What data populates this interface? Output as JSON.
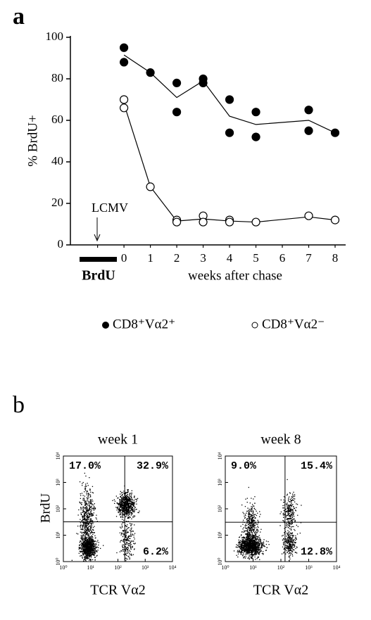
{
  "chart_data": [
    {
      "type": "scatter",
      "panel": "a",
      "ylabel": "% BrdU+",
      "xlabel": "weeks after chase",
      "annotations": [
        "LCMV",
        "BrdU"
      ],
      "xlim": [
        -2.03,
        8.4
      ],
      "xticks": [
        {
          "value": -1,
          "label": "-"
        },
        0,
        1,
        2,
        3,
        4,
        5,
        6,
        7,
        8
      ],
      "ylim": [
        0,
        100
      ],
      "yticks": [
        0,
        20,
        40,
        60,
        80,
        100
      ],
      "series": [
        {
          "name": "CD8⁺Vα2⁺",
          "color": "#000000",
          "marker": "filled",
          "x": [
            0,
            0,
            1,
            2,
            2,
            3,
            3,
            4,
            4,
            5,
            5,
            7,
            7,
            8
          ],
          "values": [
            95,
            88,
            83,
            78,
            64,
            80,
            78,
            70,
            54,
            64,
            52,
            65,
            55,
            54
          ],
          "line_x": [
            0,
            1,
            2,
            3,
            4,
            5,
            7,
            8
          ],
          "line_values": [
            91.5,
            83,
            71,
            79,
            62,
            58,
            60,
            54
          ]
        },
        {
          "name": "CD8⁺Vα2⁻",
          "color": "#000000",
          "marker": "open",
          "x": [
            0,
            0,
            1,
            2,
            2,
            3,
            3,
            4,
            4,
            5,
            7,
            8
          ],
          "values": [
            70,
            66,
            28,
            12,
            11,
            14,
            11,
            12,
            11,
            11,
            14,
            12
          ],
          "line_x": [
            0,
            1,
            2,
            3,
            4,
            5,
            7,
            8
          ],
          "line_values": [
            68,
            28,
            11.5,
            12.5,
            11.5,
            11,
            13.5,
            12
          ]
        }
      ]
    },
    {
      "type": "flow",
      "panel": "b",
      "title": "week 1",
      "xlabel": "TCR Vα2",
      "ylabel": "BrdU",
      "xscale": "log",
      "yscale": "log",
      "xlim": [
        1,
        10000
      ],
      "ylim": [
        1,
        10000
      ],
      "xticks": [
        {
          "value": 1,
          "label": "10⁰"
        },
        {
          "value": 10,
          "label": "10¹"
        },
        {
          "value": 100,
          "label": "10²"
        },
        {
          "value": 1000,
          "label": "10³"
        },
        {
          "value": 10000,
          "label": "10⁴"
        }
      ],
      "yticks": [
        {
          "value": 1,
          "label": "10⁰"
        },
        {
          "value": 10,
          "label": "10¹"
        },
        {
          "value": 100,
          "label": "10²"
        },
        {
          "value": 1000,
          "label": "10³"
        },
        {
          "value": 10000,
          "label": "10⁴"
        }
      ],
      "gate_x": 178,
      "gate_y": 32,
      "values": [
        17.0,
        32.9,
        6.2
      ],
      "value_labels": [
        "17.0%",
        "32.9%",
        "6.2%"
      ]
    },
    {
      "type": "flow",
      "title": "week 8",
      "xlabel": "TCR Vα2",
      "xscale": "log",
      "yscale": "log",
      "xlim": [
        1,
        10000
      ],
      "ylim": [
        1,
        10000
      ],
      "xticks": [
        {
          "value": 1,
          "label": "10⁰"
        },
        {
          "value": 10,
          "label": "10¹"
        },
        {
          "value": 100,
          "label": "10²"
        },
        {
          "value": 1000,
          "label": "10³"
        },
        {
          "value": 10000,
          "label": "10⁴"
        }
      ],
      "yticks": [
        {
          "value": 1,
          "label": "10⁰"
        },
        {
          "value": 10,
          "label": "10¹"
        },
        {
          "value": 100,
          "label": "10²"
        },
        {
          "value": 1000,
          "label": "10³"
        },
        {
          "value": 10000,
          "label": "10⁴"
        }
      ],
      "gate_x": 141,
      "gate_y": 31,
      "values": [
        9.0,
        15.4,
        12.8
      ],
      "value_labels": [
        "9.0%",
        "15.4%",
        "12.8%"
      ]
    }
  ]
}
